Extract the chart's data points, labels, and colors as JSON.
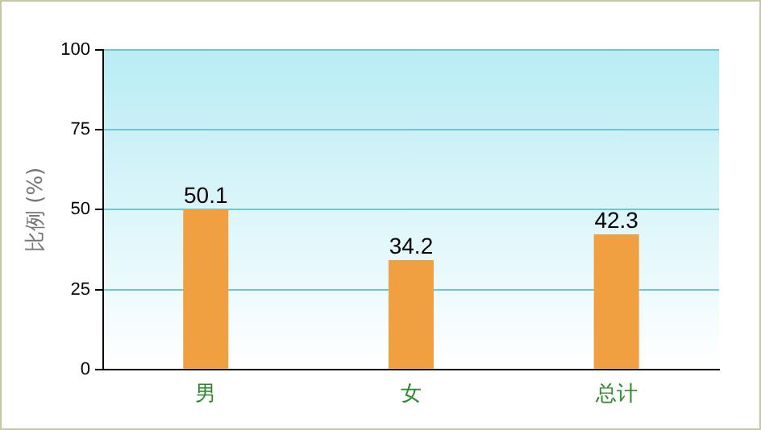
{
  "chart_data": {
    "type": "bar",
    "ylabel": "比例 (%)",
    "categories": [
      "男",
      "女",
      "总计"
    ],
    "values": [
      50.1,
      34.2,
      42.3
    ],
    "color": "#f0a040",
    "ylim": [
      0,
      100
    ],
    "yticks": [
      0,
      25,
      50,
      75,
      100
    ],
    "grid": "y",
    "data_labels": true
  }
}
